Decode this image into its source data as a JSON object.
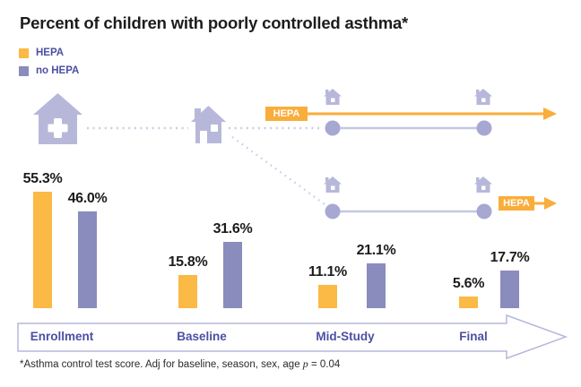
{
  "title": "Percent of children with poorly controlled asthma*",
  "legend": {
    "items": [
      {
        "label": "HEPA",
        "color": "#FBB945"
      },
      {
        "label": "no HEPA",
        "color": "#8A8CBE"
      }
    ]
  },
  "journey": {
    "hepa_badge_top": "HEPA",
    "hepa_badge_bottom": "HEPA",
    "icons": {
      "start": "clinic-house-icon",
      "randomization": "house-icon",
      "hepa_homes": "small-house-icon",
      "no_hepa_homes": "small-house-icon",
      "timeline_marker": "circle-dot-icon"
    }
  },
  "chart_data": {
    "type": "bar",
    "title": "Percent of children with poorly controlled asthma*",
    "categories": [
      "Enrollment",
      "Baseline",
      "Mid-Study",
      "Final"
    ],
    "series": [
      {
        "name": "HEPA",
        "color": "#FBB945",
        "values": [
          55.3,
          15.8,
          11.1,
          5.6
        ],
        "labels": [
          "55.3%",
          "15.8%",
          "11.1%",
          "5.6%"
        ]
      },
      {
        "name": "no HEPA",
        "color": "#8A8CBE",
        "values": [
          46.0,
          31.6,
          21.1,
          17.7
        ],
        "labels": [
          "46.0%",
          "31.6%",
          "21.1%",
          "17.7%"
        ]
      }
    ],
    "ylim": [
      0,
      60
    ],
    "grid": false,
    "legend_position": "top-left",
    "value_labels": true
  },
  "footnote": {
    "prefix": "*Asthma control test score. Adj for baseline, season, sex, age ",
    "stat_var": "p",
    "suffix": " = 0.04"
  },
  "colors": {
    "hepa_orange": "#FBB945",
    "accent_orange": "#F9AD3B",
    "no_hepa_purple": "#8A8CBE",
    "icon_purple": "#B7B8D9",
    "timeline_dot": "#A6A8D3",
    "timeline_line": "#C6C7E3",
    "dotted_line": "#CBCCE8",
    "text_purple": "#4D4FA3",
    "band_border": "#B6B8DC",
    "text_dark": "#1C1C1C"
  }
}
